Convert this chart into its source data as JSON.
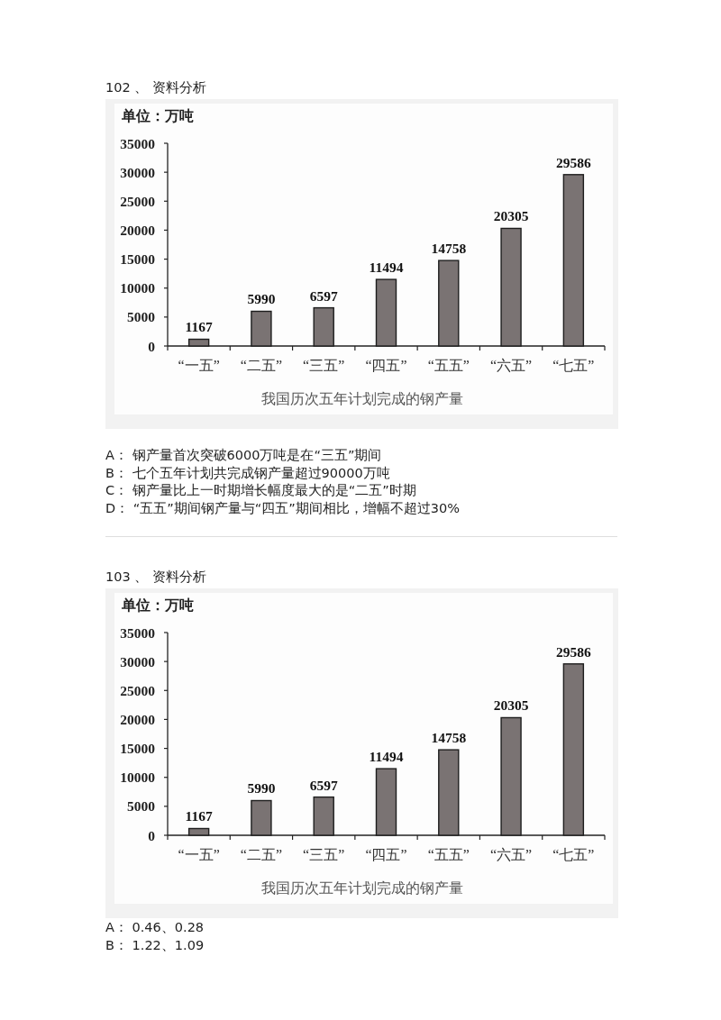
{
  "chart_data": [
    {
      "type": "bar",
      "title": "我国历次五年计划完成的钢产量",
      "ylabel": "单位：万吨",
      "categories": [
        "“一五”",
        "“二五”",
        "“三五”",
        "“四五”",
        "“五五”",
        "“六五”",
        "“七五”"
      ],
      "values": [
        1167,
        5990,
        6597,
        11494,
        14758,
        20305,
        29586
      ],
      "color": "#7a7373",
      "ylim": [
        0,
        35000
      ],
      "yticks": [
        0,
        5000,
        10000,
        15000,
        20000,
        25000,
        30000,
        35000
      ],
      "data_labels": true,
      "annotations": [
        "102 、 资料分析",
        "A： 钢产量首次突破6000万吨是在“三五”期间",
        "B： 七个五年计划共完成钢产量超过90000万吨",
        "C： 钢产量比上一时期增长幅度最大的是“二五”时期",
        "D： “五五”期间钢产量与“四五”期间相比，增幅不超过30%"
      ]
    },
    {
      "type": "bar",
      "title": "我国历次五年计划完成的钢产量",
      "ylabel": "单位：万吨",
      "categories": [
        "“一五”",
        "“二五”",
        "“三五”",
        "“四五”",
        "“五五”",
        "“六五”",
        "“七五”"
      ],
      "values": [
        1167,
        5990,
        6597,
        11494,
        14758,
        20305,
        29586
      ],
      "color": "#7a7373",
      "ylim": [
        0,
        35000
      ],
      "yticks": [
        0,
        5000,
        10000,
        15000,
        20000,
        25000,
        30000,
        35000
      ],
      "data_labels": true,
      "annotations": [
        "103 、 资料分析",
        "A： 0.46、0.28",
        "B： 1.22、1.09"
      ]
    }
  ]
}
